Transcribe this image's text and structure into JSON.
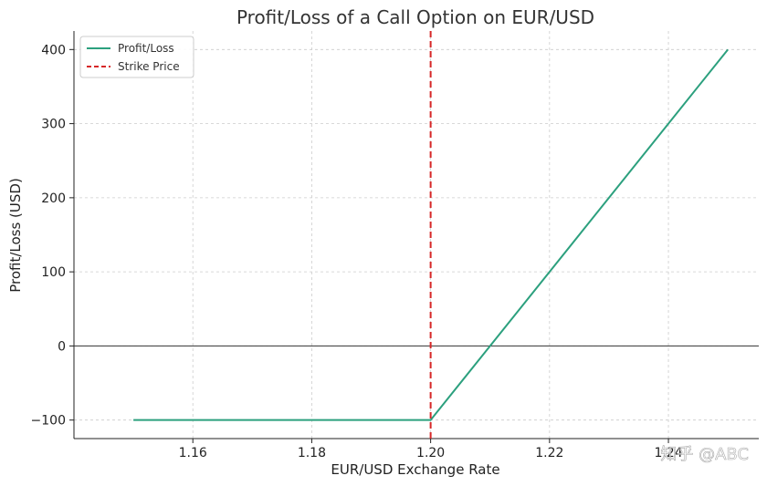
{
  "chart_data": {
    "type": "line",
    "title": "Profit/Loss of a Call Option on EUR/USD",
    "xlabel": "EUR/USD Exchange Rate",
    "ylabel": "Profit/Loss (USD)",
    "xlim": [
      1.14,
      1.2552
    ],
    "ylim": [
      -125,
      425
    ],
    "xticks": [
      1.16,
      1.18,
      1.2,
      1.22,
      1.24
    ],
    "xtick_labels": [
      "1.16",
      "1.18",
      "1.20",
      "1.22",
      "1.24"
    ],
    "yticks": [
      -100,
      0,
      100,
      200,
      300,
      400
    ],
    "ytick_labels": [
      "−100",
      "0",
      "100",
      "200",
      "300",
      "400"
    ],
    "grid": true,
    "legend_position": "top-left",
    "series": [
      {
        "name": "Profit/Loss",
        "color": "#2ca07e",
        "style": "solid",
        "x": [
          1.15,
          1.2,
          1.25
        ],
        "y": [
          -100,
          -100,
          400
        ]
      }
    ],
    "vlines": [
      {
        "name": "Strike Price",
        "x": 1.2,
        "color": "#d62728",
        "style": "dashed"
      }
    ],
    "hlines": [
      {
        "y": 0,
        "color": "#333333",
        "style": "solid"
      }
    ]
  },
  "watermark": "知乎 @ABC"
}
